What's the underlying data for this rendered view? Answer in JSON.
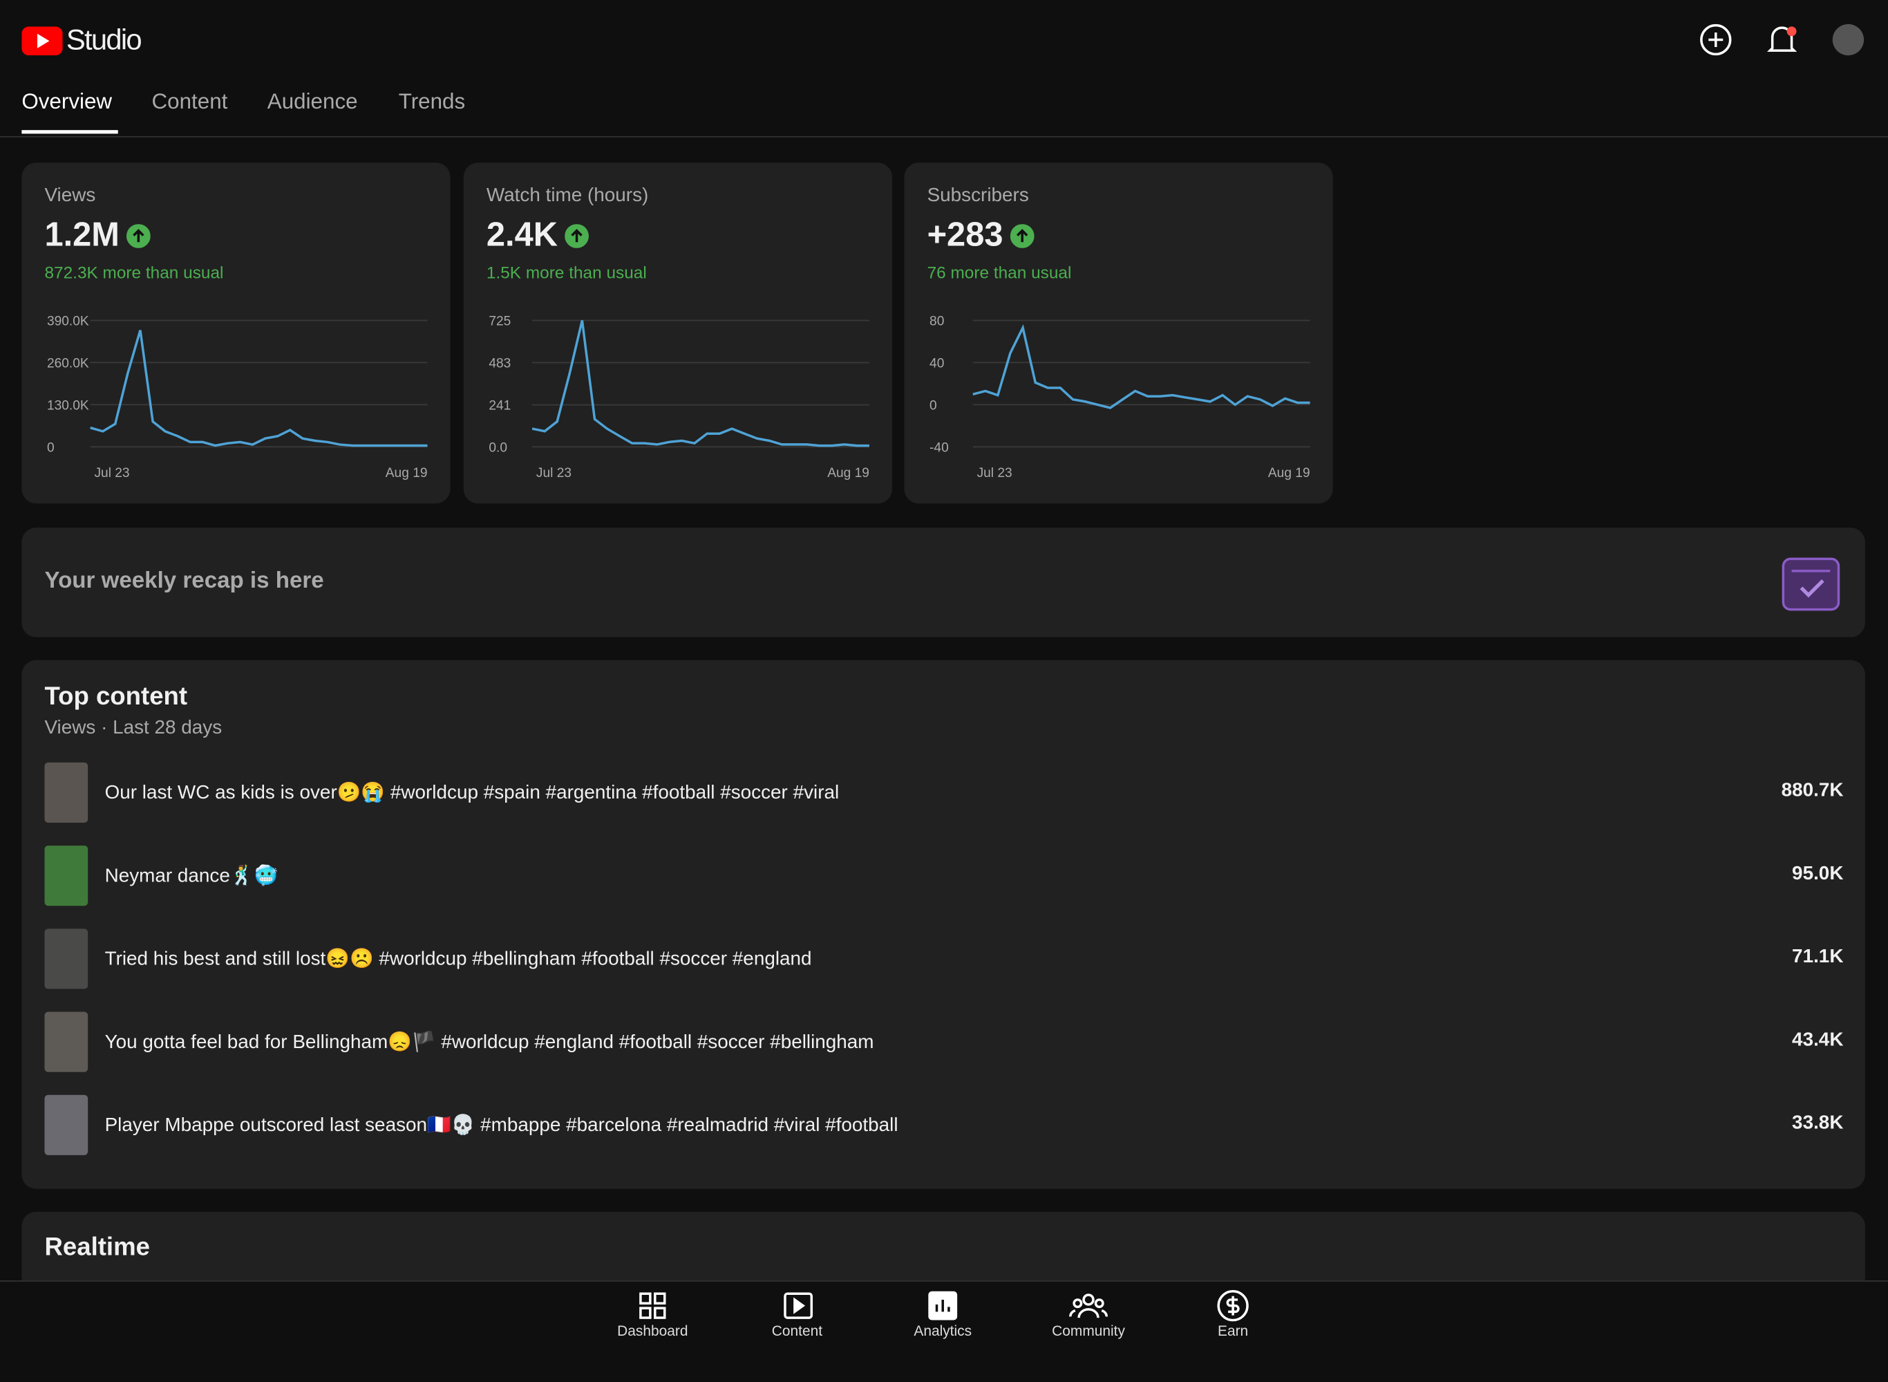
{
  "header": {
    "logo": "Studio"
  },
  "tabs": [
    "Overview",
    "Content",
    "Audience",
    "Trends"
  ],
  "cards": [
    {
      "title": "Views",
      "value": "1.2M",
      "delta": "872.3K more than usual",
      "chart": {
        "type": "line",
        "color": "#4fa3d6",
        "x_labels": [
          "Jul 23",
          "Aug 19"
        ],
        "ylim": [
          0,
          390000
        ],
        "yticks": [
          0,
          {
            "value": 130000,
            "label": "130.0K"
          },
          {
            "value": 260000,
            "label": "260.0K"
          },
          {
            "value": 390000,
            "label": "390.0K"
          }
        ],
        "values": [
          59000,
          48000,
          71000,
          227000,
          360000,
          78000,
          48000,
          33000,
          15000,
          15000,
          4000,
          11000,
          15000,
          7000,
          26000,
          33000,
          52000,
          26000,
          19000,
          15000,
          7000,
          4000,
          4000,
          4000,
          4000,
          4000,
          4000,
          4000
        ]
      }
    },
    {
      "title": "Watch time (hours)",
      "value": "2.4K",
      "delta": "1.5K more than usual",
      "chart": {
        "type": "line",
        "color": "#4fa3d6",
        "x_labels": [
          "Jul 23",
          "Aug 19"
        ],
        "ylim": [
          0,
          725
        ],
        "yticks": [
          {
            "value": 0,
            "label": "0.0"
          },
          241,
          483,
          725
        ],
        "values": [
          104,
          90,
          145,
          421,
          725,
          159,
          104,
          62,
          21,
          21,
          14,
          28,
          35,
          21,
          76,
          76,
          104,
          76,
          48,
          35,
          14,
          14,
          14,
          7,
          7,
          14,
          7,
          7
        ]
      }
    },
    {
      "title": "Subscribers",
      "value": "+283",
      "delta": "76 more than usual",
      "chart": {
        "type": "line",
        "color": "#4fa3d6",
        "x_labels": [
          "Jul 23",
          "Aug 19"
        ],
        "ylim": [
          -40,
          80
        ],
        "yticks": [
          -40,
          0,
          40,
          80
        ],
        "values": [
          10,
          13,
          9,
          49,
          73,
          21,
          16,
          16,
          5,
          3,
          0,
          -3,
          5,
          13,
          8,
          8,
          9,
          7,
          5,
          3,
          9,
          0,
          8,
          5,
          -1,
          6,
          2,
          2
        ]
      }
    }
  ],
  "recap": {
    "text": "Your weekly recap is here"
  },
  "top_content": {
    "title": "Top content",
    "subtitle": "Views · Last 28 days",
    "rows": [
      {
        "title": "Our last WC as kids is over🫤😭 #worldcup #spain #argentina #football #soccer #viral",
        "views": "880.7K"
      },
      {
        "title": "Neymar dance🕺🥶",
        "views": "95.0K"
      },
      {
        "title": "Tried his best and still lost😖☹️ #worldcup #bellingham #football #soccer #england",
        "views": "71.1K"
      },
      {
        "title": "You gotta feel bad for Bellingham😞🏴 #worldcup #england #football #soccer #bellingham",
        "views": "43.4K"
      },
      {
        "title": "Player Mbappe outscored last season🇫🇷💀 #mbappe #barcelona #realmadrid #viral #football",
        "views": "33.8K"
      }
    ]
  },
  "realtime": {
    "title": "Realtime"
  },
  "nav": [
    "Dashboard",
    "Content",
    "Analytics",
    "Community",
    "Earn"
  ]
}
